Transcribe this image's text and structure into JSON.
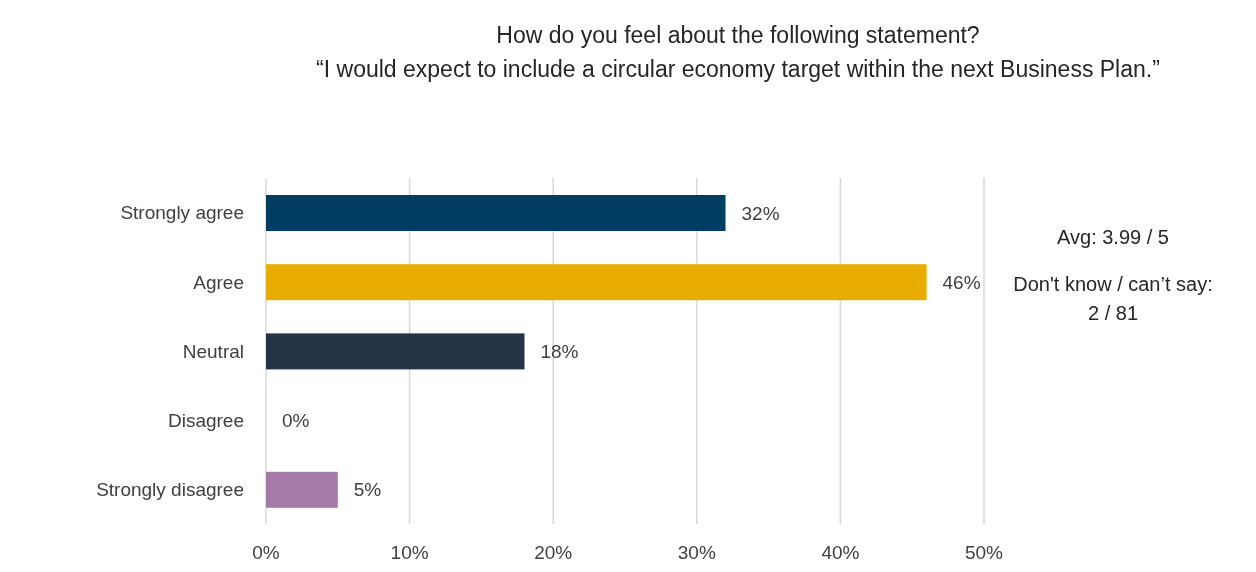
{
  "chart_data": {
    "type": "bar",
    "orientation": "horizontal",
    "title": "How do you feel about the following statement?",
    "subtitle": "“I would expect to include a circular economy target within the next Business Plan.”",
    "categories": [
      "Strongly agree",
      "Agree",
      "Neutral",
      "Disagree",
      "Strongly disagree"
    ],
    "values": [
      32,
      46,
      18,
      0,
      5
    ],
    "value_labels": [
      "32%",
      "46%",
      "18%",
      "0%",
      "5%"
    ],
    "colors": [
      "#003d63",
      "#e8ad00",
      "#263447",
      "#8c8c8c",
      "#a67aa8"
    ],
    "xlim": [
      0,
      50
    ],
    "xticks": [
      {
        "value": 0,
        "label": "0%"
      },
      {
        "value": 10,
        "label": "10%"
      },
      {
        "value": 20,
        "label": "20%"
      },
      {
        "value": 30,
        "label": "30%"
      },
      {
        "value": 40,
        "label": "40%"
      },
      {
        "value": 50,
        "label": "50%"
      }
    ],
    "grid": "x",
    "annotations": [
      "Avg: 3.99 / 5",
      "Don't know / can’t say: 2 / 81"
    ]
  }
}
